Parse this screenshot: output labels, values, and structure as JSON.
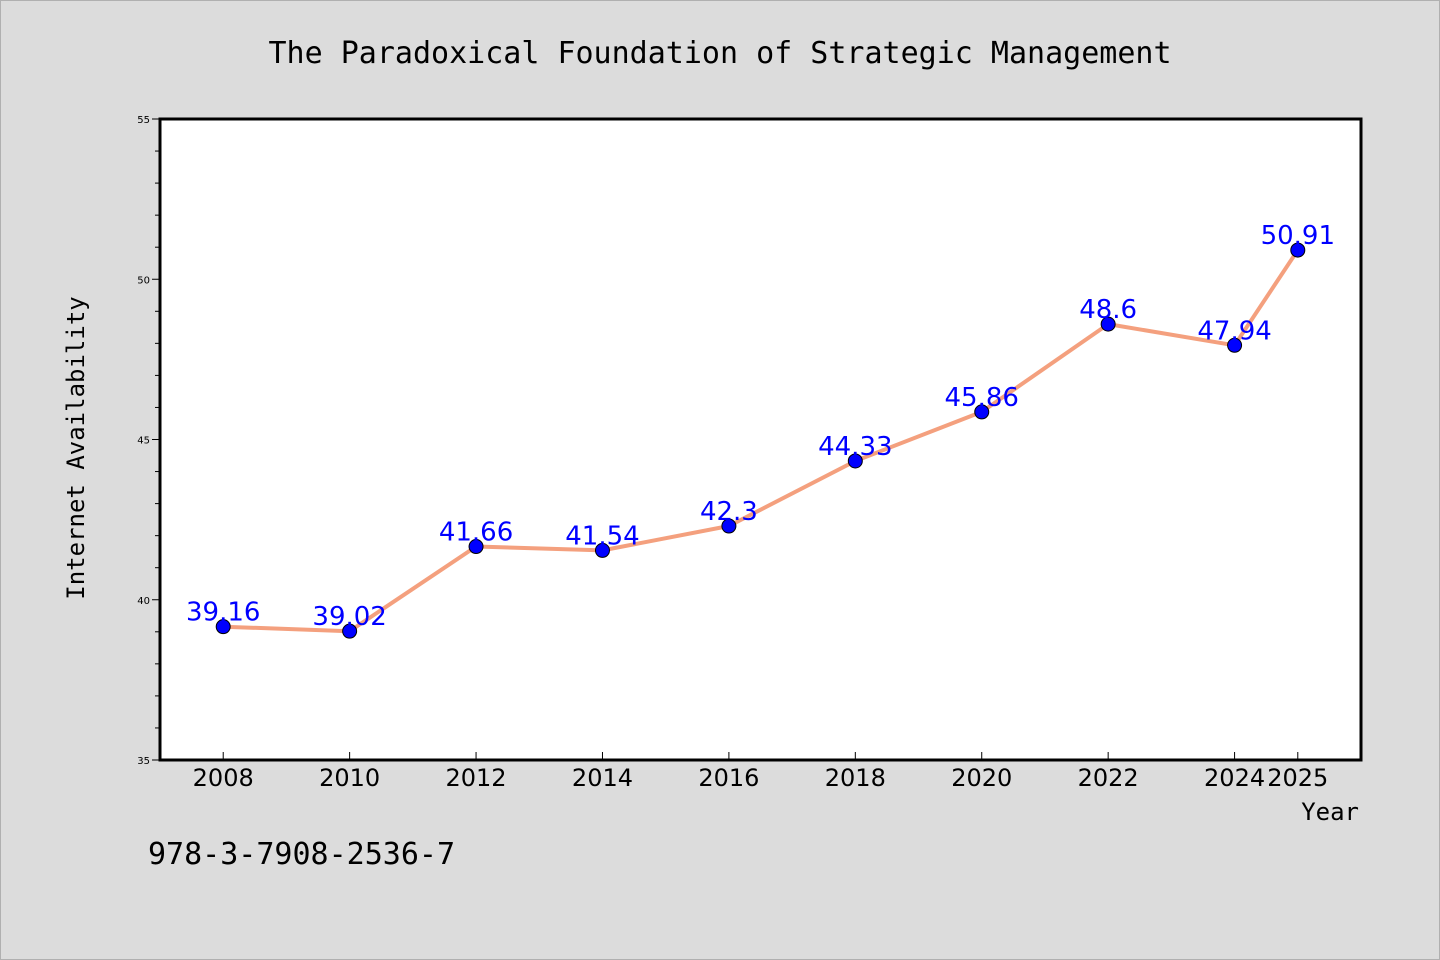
{
  "chart_data": {
    "type": "line",
    "title": "The Paradoxical Foundation of Strategic Management",
    "xlabel": "Year",
    "ylabel": "Internet Availability",
    "x": [
      "2008",
      "2010",
      "2012",
      "2014",
      "2016",
      "2018",
      "2020",
      "2022",
      "2024",
      "2025"
    ],
    "values": [
      39.16,
      39.02,
      41.66,
      41.54,
      42.3,
      44.33,
      45.86,
      48.6,
      47.94,
      50.91
    ],
    "data_labels": [
      "39.16",
      "39.02",
      "41.66",
      "41.54",
      "42.3",
      "44.33",
      "45.86",
      "48.6",
      "47.94",
      "50.91"
    ],
    "ylim": [
      35,
      55
    ],
    "yticks": [
      "35",
      "40",
      "45",
      "50",
      "55"
    ],
    "grid": false,
    "line_color": "#f4a07e",
    "marker_color": "#0000ff"
  },
  "footer": {
    "isbn": "978-3-7908-2536-7"
  }
}
